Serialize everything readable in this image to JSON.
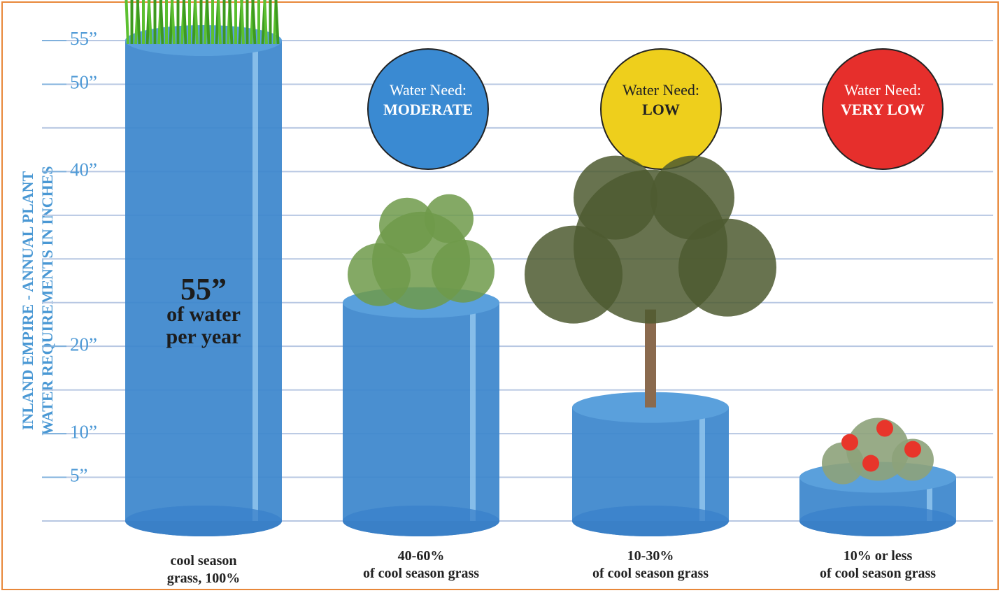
{
  "chart_data": {
    "type": "cylinder-bar",
    "ylabel_lines": [
      "INLAND EMPIRE - ANNUAL PLANT",
      "WATER REQUIREMENTS IN INCHES"
    ],
    "categories": [
      "cool season\ngrass, 100%",
      "40-60%\nof cool season grass",
      "10-30%\nof cool season grass",
      "10% or less\nof cool season grass"
    ],
    "values": [
      55,
      25,
      13,
      5
    ],
    "color": "#3b86cc",
    "annotation_lines": [
      "55”",
      "of water",
      "per year"
    ],
    "badges": [
      {
        "label": "Water Need:",
        "level": "MODERATE",
        "color": "#3a8ad2"
      },
      {
        "label": "Water Need:",
        "level": "LOW",
        "color": "#eecf1c"
      },
      {
        "label": "Water Need:",
        "level": "VERY LOW",
        "color": "#e62f2c"
      }
    ],
    "ylim": [
      0,
      55
    ],
    "yticks": [
      {
        "value": 55,
        "label": "55”"
      },
      {
        "value": 50,
        "label": "50”"
      },
      {
        "value": 40,
        "label": "40”"
      },
      {
        "value": 20,
        "label": "20”"
      },
      {
        "value": 10,
        "label": "10”"
      },
      {
        "value": 5,
        "label": "5”"
      }
    ],
    "grid_lines": [
      0,
      5,
      10,
      15,
      20,
      25,
      30,
      35,
      40,
      45,
      50,
      55
    ],
    "grid": true
  }
}
